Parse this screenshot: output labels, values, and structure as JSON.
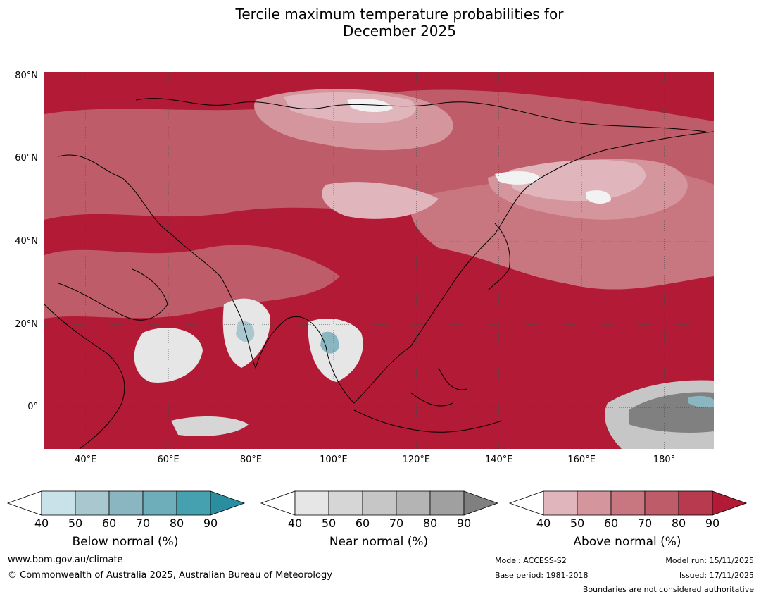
{
  "chart_data": {
    "type": "heatmap",
    "title_line1": "Tercile maximum temperature probabilities for",
    "title_line2": "December 2025",
    "lat_range": [
      -10,
      81
    ],
    "lon_range": [
      30,
      192
    ],
    "y_ticks": [
      "80°N",
      "60°N",
      "40°N",
      "20°N",
      "0°"
    ],
    "y_tick_values": [
      80,
      60,
      40,
      20,
      0
    ],
    "x_ticks": [
      "40°E",
      "60°E",
      "80°E",
      "100°E",
      "120°E",
      "140°E",
      "160°E",
      "180°"
    ],
    "x_tick_values": [
      40,
      60,
      80,
      100,
      120,
      140,
      160,
      180
    ],
    "colorbars": [
      {
        "name": "below",
        "label": "Below normal (%)",
        "ticks": [
          "40",
          "50",
          "60",
          "70",
          "80",
          "90"
        ],
        "colors": [
          "#c9e1e8",
          "#a9c7ce",
          "#89b6c0",
          "#6eaebb",
          "#45a0b0",
          "#2b8ea0"
        ]
      },
      {
        "name": "near",
        "label": "Near normal (%)",
        "ticks": [
          "40",
          "50",
          "60",
          "70",
          "80",
          "90"
        ],
        "colors": [
          "#e6e6e6",
          "#d6d6d6",
          "#c6c6c6",
          "#b4b4b4",
          "#a0a0a0",
          "#808080"
        ]
      },
      {
        "name": "above",
        "label": "Above normal (%)",
        "ticks": [
          "40",
          "50",
          "60",
          "70",
          "80",
          "90"
        ],
        "colors": [
          "#e0b6bc",
          "#d4959c",
          "#c87680",
          "#bf5c69",
          "#b83a4f",
          "#b21a36"
        ]
      }
    ]
  },
  "footer": {
    "url": "www.bom.gov.au/climate",
    "copyright": "© Commonwealth of Australia 2025, Australian Bureau of Meteorology",
    "model": "Model: ACCESS-S2",
    "base_period": "Base period: 1981-2018",
    "model_run": "Model run: 15/11/2025",
    "issued": "Issued: 17/11/2025",
    "disclaimer": "Boundaries are not considered authoritative"
  }
}
